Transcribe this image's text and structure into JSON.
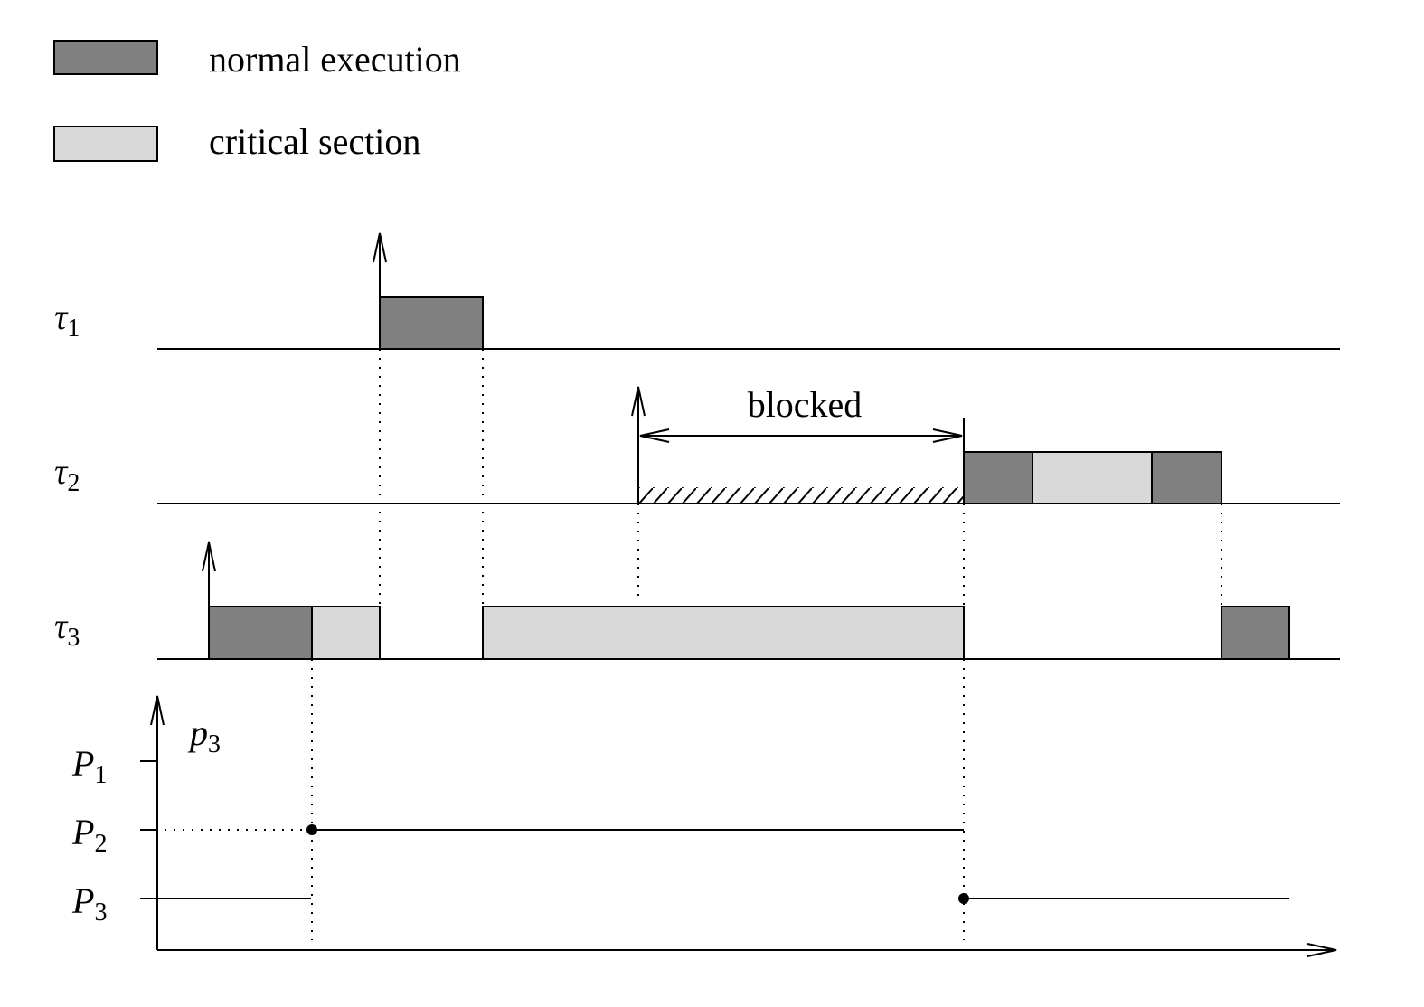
{
  "legend": {
    "normal_label": "normal execution",
    "critical_label": "critical section",
    "normal_color": "#808080",
    "critical_color": "#d9d9d9"
  },
  "tasks": [
    {
      "name": "τ",
      "sub": "1"
    },
    {
      "name": "τ",
      "sub": "2"
    },
    {
      "name": "τ",
      "sub": "3"
    }
  ],
  "blocked_label": "blocked",
  "priority": {
    "axis_label_main": "p",
    "axis_label_sub": "3",
    "levels": [
      {
        "name": "P",
        "sub": "1"
      },
      {
        "name": "P",
        "sub": "2"
      },
      {
        "name": "P",
        "sub": "3"
      }
    ]
  }
}
